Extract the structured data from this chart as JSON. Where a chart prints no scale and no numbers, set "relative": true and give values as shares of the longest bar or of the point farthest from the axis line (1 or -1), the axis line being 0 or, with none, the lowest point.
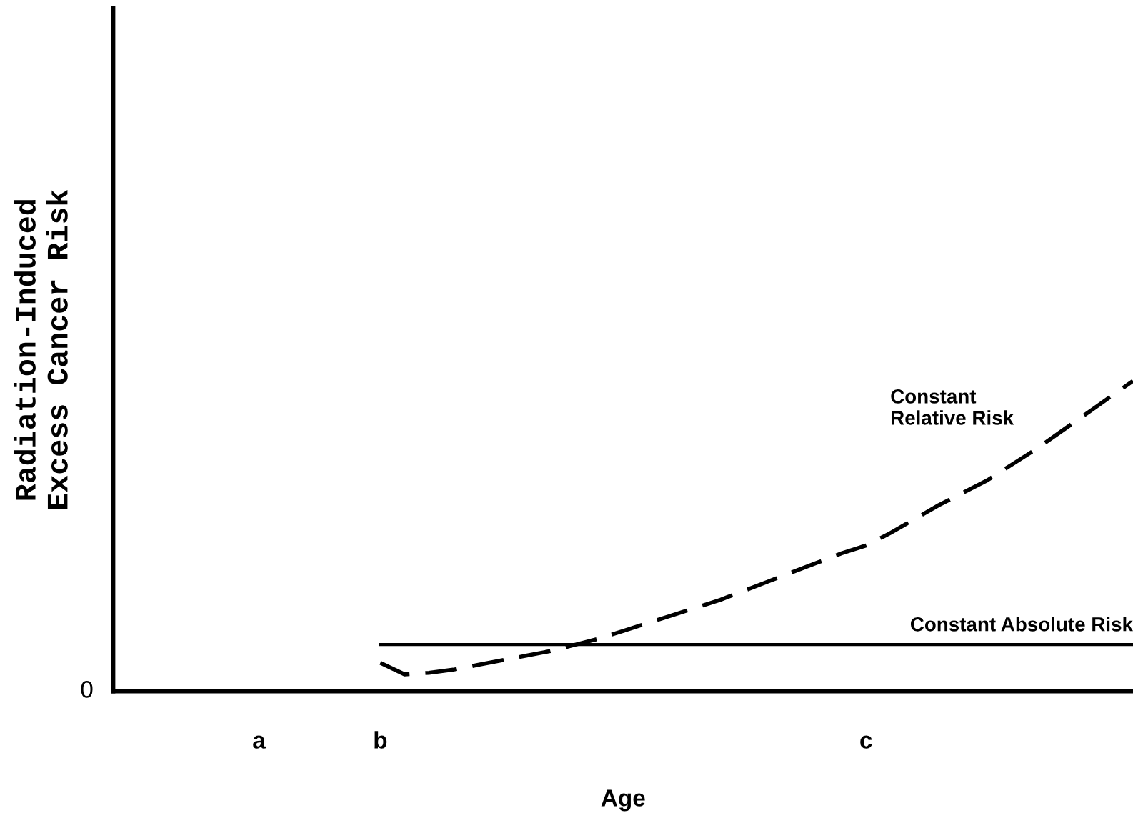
{
  "chart_data": {
    "type": "line",
    "relative": true,
    "xlabel": "Age",
    "ylabel": "Radiation-Induced\nExcess Cancer Risk",
    "categories": [
      null,
      null,
      null,
      null,
      null,
      null,
      "a",
      null,
      null,
      null,
      null,
      "b",
      null,
      null,
      null,
      null,
      null,
      null,
      null,
      null,
      null,
      null,
      null,
      null,
      null,
      null,
      null,
      null,
      null,
      null,
      null,
      "c",
      null,
      null,
      null,
      null,
      null,
      null,
      null,
      null,
      null,
      null,
      null
    ],
    "annotations": [
      "0"
    ],
    "series": [
      {
        "name": "Constant Relative Risk",
        "color": "#000000",
        "line_style": "dashed",
        "values": [
          null,
          null,
          null,
          null,
          null,
          null,
          null,
          null,
          null,
          null,
          null,
          0.092,
          0.055,
          0.06,
          0.07,
          0.085,
          0.1,
          0.115,
          0.13,
          0.15,
          0.17,
          0.195,
          0.22,
          0.245,
          0.27,
          0.295,
          0.325,
          0.355,
          0.385,
          0.415,
          0.445,
          0.47,
          0.51,
          0.555,
          0.6,
          0.64,
          0.68,
          0.73,
          0.78,
          0.835,
          0.89,
          0.945,
          1.0
        ]
      },
      {
        "name": "Constant Absolute Risk",
        "color": "#000000",
        "line_style": "solid",
        "values": [
          null,
          null,
          null,
          null,
          null,
          null,
          null,
          null,
          null,
          null,
          null,
          0.151,
          0.151,
          0.151,
          0.151,
          0.151,
          0.151,
          0.151,
          0.151,
          0.151,
          0.151,
          0.151,
          0.151,
          0.151,
          0.151,
          0.151,
          0.151,
          0.151,
          0.151,
          0.151,
          0.151,
          0.151,
          0.151,
          0.151,
          0.151,
          0.151,
          0.151,
          0.151,
          0.151,
          0.151,
          0.151,
          0.151,
          0.151
        ]
      }
    ],
    "grid": false,
    "legend": false,
    "marker": "none"
  }
}
